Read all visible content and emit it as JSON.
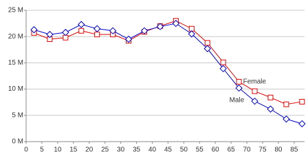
{
  "chart_data": {
    "type": "line",
    "x": [
      2.5,
      7.5,
      12.5,
      17.5,
      22.5,
      27.5,
      32.5,
      37.5,
      42.5,
      47.5,
      52.5,
      57.5,
      62.5,
      67.5,
      72.5,
      77.5,
      82.5,
      87.5
    ],
    "series": [
      {
        "name": "Female",
        "color": "#e00000",
        "marker": "square",
        "values": [
          20.7,
          19.5,
          19.8,
          21.1,
          20.4,
          20.4,
          19.2,
          20.9,
          22.0,
          23.0,
          21.5,
          18.8,
          15.1,
          11.4,
          9.6,
          8.4,
          7.1,
          7.6
        ]
      },
      {
        "name": "Male",
        "color": "#0000cc",
        "marker": "diamond",
        "values": [
          21.3,
          20.4,
          20.8,
          22.3,
          21.5,
          21.1,
          19.5,
          21.1,
          21.9,
          22.5,
          20.5,
          17.7,
          13.9,
          10.2,
          7.7,
          6.2,
          4.3,
          3.4
        ]
      }
    ],
    "xlim": [
      0,
      88.3
    ],
    "xticks": [
      0,
      5,
      10,
      15,
      20,
      25,
      30,
      35,
      40,
      45,
      50,
      55,
      60,
      65,
      70,
      75,
      80,
      85
    ],
    "ylim": [
      0,
      25
    ],
    "yticks": [
      {
        "value": 0,
        "label": "0 M"
      },
      {
        "value": 5,
        "label": "5 M"
      },
      {
        "value": 10,
        "label": "10 M"
      },
      {
        "value": 15,
        "label": "15 M"
      },
      {
        "value": 20,
        "label": "20 M"
      },
      {
        "value": 25,
        "label": "25 M"
      }
    ],
    "grid": true
  }
}
